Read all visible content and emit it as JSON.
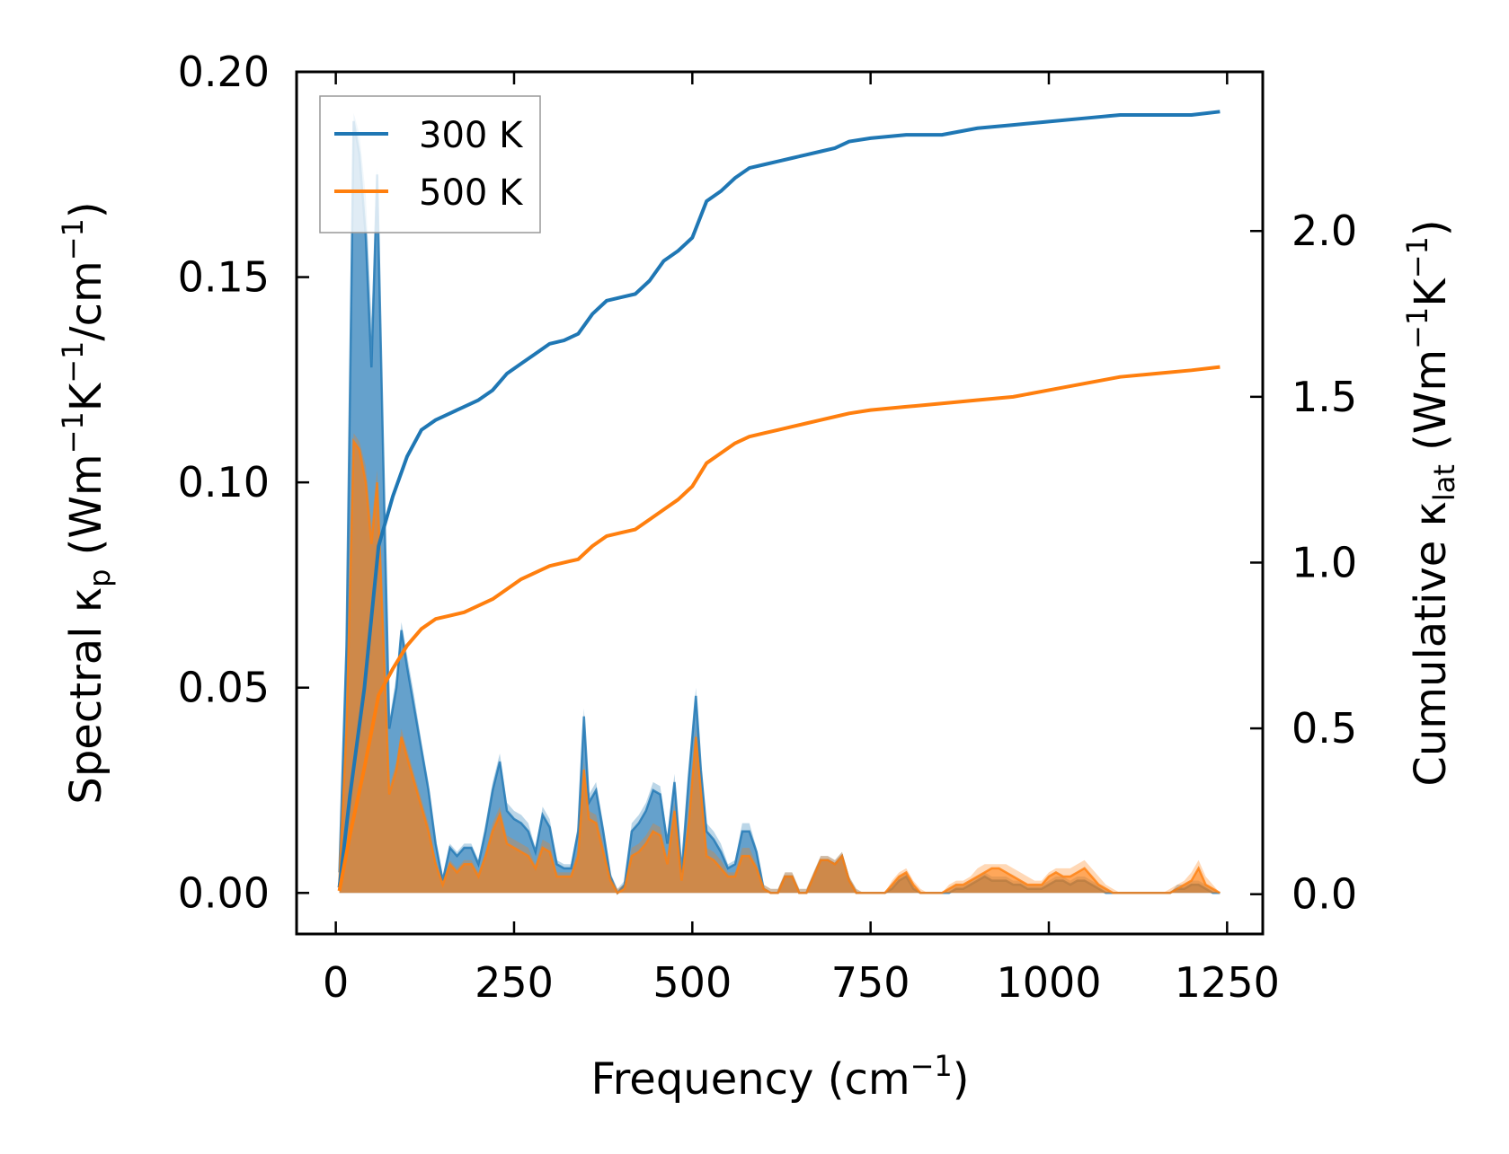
{
  "chart_data": {
    "type": "line",
    "xlabel_main": "Frequency (cm",
    "xlabel_sup": "−1",
    "xlabel_close": ")",
    "ylabel_left": {
      "a": "Spectral κ",
      "a_sub": "p",
      "b": " (Wm",
      "b_sup": "−1",
      "c": "K",
      "c_sup": "−1",
      "d": "/cm",
      "d_sup": "−1",
      "e": ")"
    },
    "ylabel_right": {
      "a": "Cumulative κ",
      "a_sub": "lat",
      "b": " (Wm",
      "b_sup": "−1",
      "c": "K",
      "c_sup": "−1",
      "d": ")"
    },
    "xlim": [
      -55,
      1300
    ],
    "ylim_left": [
      -0.01,
      0.2
    ],
    "ylim_right": [
      -0.12,
      2.48
    ],
    "x_ticks": [
      0,
      250,
      500,
      750,
      1000,
      1250
    ],
    "x_tick_labels": [
      "0",
      "250",
      "500",
      "750",
      "1000",
      "1250"
    ],
    "y_left_ticks": [
      0.0,
      0.05,
      0.1,
      0.15,
      0.2
    ],
    "y_left_tick_labels": [
      "0.00",
      "0.05",
      "0.10",
      "0.15",
      "0.20"
    ],
    "y_right_ticks": [
      0.0,
      0.5,
      1.0,
      1.5,
      2.0
    ],
    "y_right_tick_labels": [
      "0.0",
      "0.5",
      "1.0",
      "1.5",
      "2.0"
    ],
    "legend": {
      "position": "upper-left",
      "entries": [
        {
          "label": "300 K",
          "color": "#1f77b4"
        },
        {
          "label": "500 K",
          "color": "#ff7f0e"
        }
      ]
    },
    "spectral": {
      "x": [
        5,
        15,
        25,
        33,
        42,
        50,
        58,
        66,
        75,
        85,
        92,
        100,
        110,
        120,
        130,
        140,
        150,
        160,
        170,
        180,
        190,
        200,
        210,
        220,
        230,
        240,
        250,
        260,
        270,
        280,
        290,
        300,
        310,
        320,
        330,
        340,
        348,
        355,
        365,
        375,
        385,
        395,
        405,
        415,
        425,
        435,
        445,
        455,
        465,
        475,
        485,
        495,
        505,
        512,
        520,
        530,
        540,
        550,
        560,
        570,
        580,
        590,
        600,
        610,
        620,
        630,
        640,
        650,
        660,
        670,
        680,
        690,
        700,
        710,
        720,
        730,
        740,
        750,
        760,
        770,
        780,
        790,
        800,
        810,
        820,
        830,
        840,
        850,
        860,
        870,
        880,
        890,
        900,
        910,
        920,
        930,
        940,
        950,
        960,
        970,
        980,
        990,
        1000,
        1010,
        1020,
        1030,
        1040,
        1050,
        1060,
        1070,
        1080,
        1090,
        1100,
        1110,
        1120,
        1130,
        1140,
        1150,
        1160,
        1170,
        1180,
        1190,
        1200,
        1210,
        1220,
        1230,
        1240
      ],
      "series": [
        {
          "name": "300 K",
          "color": "#1f77b4",
          "values": [
            0.005,
            0.06,
            0.188,
            0.18,
            0.16,
            0.128,
            0.175,
            0.11,
            0.04,
            0.05,
            0.064,
            0.055,
            0.045,
            0.035,
            0.025,
            0.012,
            0.003,
            0.011,
            0.009,
            0.011,
            0.011,
            0.007,
            0.015,
            0.025,
            0.032,
            0.02,
            0.018,
            0.017,
            0.015,
            0.01,
            0.019,
            0.016,
            0.007,
            0.006,
            0.006,
            0.015,
            0.043,
            0.022,
            0.025,
            0.015,
            0.004,
            0.0,
            0.002,
            0.015,
            0.017,
            0.02,
            0.025,
            0.024,
            0.012,
            0.027,
            0.005,
            0.028,
            0.048,
            0.03,
            0.015,
            0.013,
            0.01,
            0.006,
            0.007,
            0.015,
            0.015,
            0.01,
            0.001,
            0.0,
            0.0,
            0.004,
            0.004,
            0.0,
            0.0,
            0.004,
            0.008,
            0.008,
            0.007,
            0.009,
            0.003,
            0.0,
            0.0,
            0.0,
            0.0,
            0.0,
            0.001,
            0.003,
            0.004,
            0.001,
            0.0,
            0.0,
            0.0,
            0.0,
            0.0,
            0.001,
            0.001,
            0.002,
            0.003,
            0.004,
            0.003,
            0.003,
            0.003,
            0.002,
            0.002,
            0.001,
            0.001,
            0.001,
            0.002,
            0.003,
            0.003,
            0.002,
            0.003,
            0.003,
            0.002,
            0.001,
            0.0,
            0.0,
            0.0,
            0.0,
            0.0,
            0.0,
            0.0,
            0.0,
            0.0,
            0.0,
            0.001,
            0.001,
            0.002,
            0.002,
            0.001,
            0.0,
            0.0
          ],
          "upper": [
            0.007,
            0.07,
            0.19,
            0.185,
            0.17,
            0.14,
            0.177,
            0.115,
            0.042,
            0.053,
            0.066,
            0.058,
            0.048,
            0.037,
            0.027,
            0.013,
            0.004,
            0.012,
            0.01,
            0.012,
            0.012,
            0.008,
            0.017,
            0.027,
            0.034,
            0.022,
            0.02,
            0.019,
            0.017,
            0.011,
            0.021,
            0.018,
            0.008,
            0.007,
            0.007,
            0.017,
            0.045,
            0.024,
            0.027,
            0.017,
            0.005,
            0.001,
            0.003,
            0.017,
            0.019,
            0.022,
            0.027,
            0.026,
            0.014,
            0.029,
            0.006,
            0.03,
            0.05,
            0.032,
            0.017,
            0.015,
            0.012,
            0.007,
            0.008,
            0.017,
            0.017,
            0.011,
            0.002,
            0.001,
            0.001,
            0.005,
            0.005,
            0.001,
            0.001,
            0.005,
            0.009,
            0.009,
            0.008,
            0.01,
            0.004,
            0.001,
            0.0,
            0.0,
            0.0,
            0.0,
            0.002,
            0.004,
            0.005,
            0.002,
            0.0,
            0.0,
            0.0,
            0.0,
            0.001,
            0.002,
            0.002,
            0.003,
            0.004,
            0.005,
            0.004,
            0.004,
            0.004,
            0.003,
            0.003,
            0.002,
            0.002,
            0.002,
            0.003,
            0.004,
            0.004,
            0.003,
            0.004,
            0.004,
            0.003,
            0.002,
            0.001,
            0.0,
            0.0,
            0.0,
            0.0,
            0.0,
            0.0,
            0.0,
            0.0,
            0.0,
            0.002,
            0.002,
            0.003,
            0.003,
            0.002,
            0.001,
            0.0
          ]
        },
        {
          "name": "500 K",
          "color": "#ff7f0e",
          "values": [
            0.003,
            0.04,
            0.11,
            0.108,
            0.1,
            0.085,
            0.1,
            0.065,
            0.024,
            0.03,
            0.038,
            0.033,
            0.027,
            0.021,
            0.015,
            0.007,
            0.002,
            0.007,
            0.005,
            0.007,
            0.007,
            0.004,
            0.009,
            0.015,
            0.019,
            0.012,
            0.011,
            0.01,
            0.009,
            0.006,
            0.011,
            0.01,
            0.004,
            0.004,
            0.004,
            0.009,
            0.03,
            0.018,
            0.017,
            0.01,
            0.003,
            0.0,
            0.001,
            0.009,
            0.01,
            0.012,
            0.015,
            0.014,
            0.007,
            0.02,
            0.003,
            0.017,
            0.038,
            0.025,
            0.009,
            0.008,
            0.006,
            0.004,
            0.004,
            0.009,
            0.009,
            0.006,
            0.001,
            0.0,
            0.0,
            0.004,
            0.004,
            0.0,
            0.0,
            0.004,
            0.008,
            0.008,
            0.007,
            0.009,
            0.003,
            0.0,
            0.0,
            0.0,
            0.0,
            0.0,
            0.002,
            0.004,
            0.005,
            0.002,
            0.0,
            0.0,
            0.0,
            0.0,
            0.001,
            0.002,
            0.002,
            0.003,
            0.004,
            0.005,
            0.006,
            0.006,
            0.005,
            0.004,
            0.003,
            0.002,
            0.002,
            0.002,
            0.004,
            0.005,
            0.004,
            0.004,
            0.005,
            0.006,
            0.004,
            0.002,
            0.001,
            0.0,
            0.0,
            0.0,
            0.0,
            0.0,
            0.0,
            0.0,
            0.0,
            0.0,
            0.001,
            0.002,
            0.003,
            0.006,
            0.002,
            0.001,
            0.0
          ],
          "upper": [
            0.004,
            0.045,
            0.112,
            0.11,
            0.104,
            0.09,
            0.103,
            0.068,
            0.026,
            0.032,
            0.04,
            0.035,
            0.029,
            0.023,
            0.017,
            0.008,
            0.003,
            0.008,
            0.006,
            0.008,
            0.008,
            0.005,
            0.01,
            0.017,
            0.021,
            0.014,
            0.013,
            0.012,
            0.011,
            0.007,
            0.013,
            0.012,
            0.005,
            0.005,
            0.005,
            0.011,
            0.032,
            0.02,
            0.019,
            0.012,
            0.004,
            0.001,
            0.002,
            0.011,
            0.012,
            0.014,
            0.017,
            0.016,
            0.009,
            0.022,
            0.004,
            0.019,
            0.04,
            0.027,
            0.011,
            0.01,
            0.008,
            0.005,
            0.005,
            0.011,
            0.011,
            0.007,
            0.002,
            0.001,
            0.001,
            0.005,
            0.005,
            0.001,
            0.001,
            0.005,
            0.009,
            0.009,
            0.008,
            0.01,
            0.004,
            0.001,
            0.0,
            0.0,
            0.0,
            0.0,
            0.003,
            0.005,
            0.006,
            0.003,
            0.001,
            0.0,
            0.0,
            0.0,
            0.002,
            0.003,
            0.003,
            0.004,
            0.006,
            0.007,
            0.007,
            0.007,
            0.007,
            0.006,
            0.005,
            0.004,
            0.003,
            0.003,
            0.005,
            0.006,
            0.006,
            0.006,
            0.007,
            0.008,
            0.006,
            0.004,
            0.002,
            0.001,
            0.0,
            0.0,
            0.0,
            0.0,
            0.0,
            0.0,
            0.0,
            0.001,
            0.002,
            0.003,
            0.005,
            0.008,
            0.004,
            0.002,
            0.0
          ]
        }
      ]
    },
    "cumulative": {
      "series": [
        {
          "name": "300 K",
          "color": "#1f77b4",
          "x": [
            5,
            20,
            40,
            60,
            80,
            100,
            120,
            140,
            160,
            180,
            200,
            220,
            240,
            260,
            280,
            300,
            320,
            340,
            360,
            380,
            400,
            420,
            440,
            460,
            480,
            500,
            520,
            540,
            560,
            580,
            600,
            620,
            640,
            660,
            680,
            700,
            720,
            750,
            800,
            850,
            900,
            950,
            1000,
            1050,
            1100,
            1150,
            1200,
            1240
          ],
          "values": [
            0.02,
            0.3,
            0.62,
            1.05,
            1.2,
            1.32,
            1.4,
            1.43,
            1.45,
            1.47,
            1.49,
            1.52,
            1.57,
            1.6,
            1.63,
            1.66,
            1.67,
            1.69,
            1.75,
            1.79,
            1.8,
            1.81,
            1.85,
            1.91,
            1.94,
            1.98,
            2.09,
            2.12,
            2.16,
            2.19,
            2.2,
            2.21,
            2.22,
            2.23,
            2.24,
            2.25,
            2.27,
            2.28,
            2.29,
            2.29,
            2.31,
            2.32,
            2.33,
            2.34,
            2.35,
            2.35,
            2.35,
            2.36
          ]
        },
        {
          "name": "500 K",
          "color": "#ff7f0e",
          "x": [
            5,
            20,
            40,
            60,
            80,
            100,
            120,
            140,
            160,
            180,
            200,
            220,
            240,
            260,
            280,
            300,
            320,
            340,
            360,
            380,
            400,
            420,
            440,
            460,
            480,
            500,
            520,
            540,
            560,
            580,
            600,
            620,
            640,
            660,
            680,
            700,
            720,
            750,
            800,
            850,
            900,
            950,
            1000,
            1050,
            1100,
            1150,
            1200,
            1240
          ],
          "values": [
            0.01,
            0.18,
            0.38,
            0.6,
            0.68,
            0.75,
            0.8,
            0.83,
            0.84,
            0.85,
            0.87,
            0.89,
            0.92,
            0.95,
            0.97,
            0.99,
            1.0,
            1.01,
            1.05,
            1.08,
            1.09,
            1.1,
            1.13,
            1.16,
            1.19,
            1.23,
            1.3,
            1.33,
            1.36,
            1.38,
            1.39,
            1.4,
            1.41,
            1.42,
            1.43,
            1.44,
            1.45,
            1.46,
            1.47,
            1.48,
            1.49,
            1.5,
            1.52,
            1.54,
            1.56,
            1.57,
            1.58,
            1.59
          ]
        }
      ]
    }
  }
}
